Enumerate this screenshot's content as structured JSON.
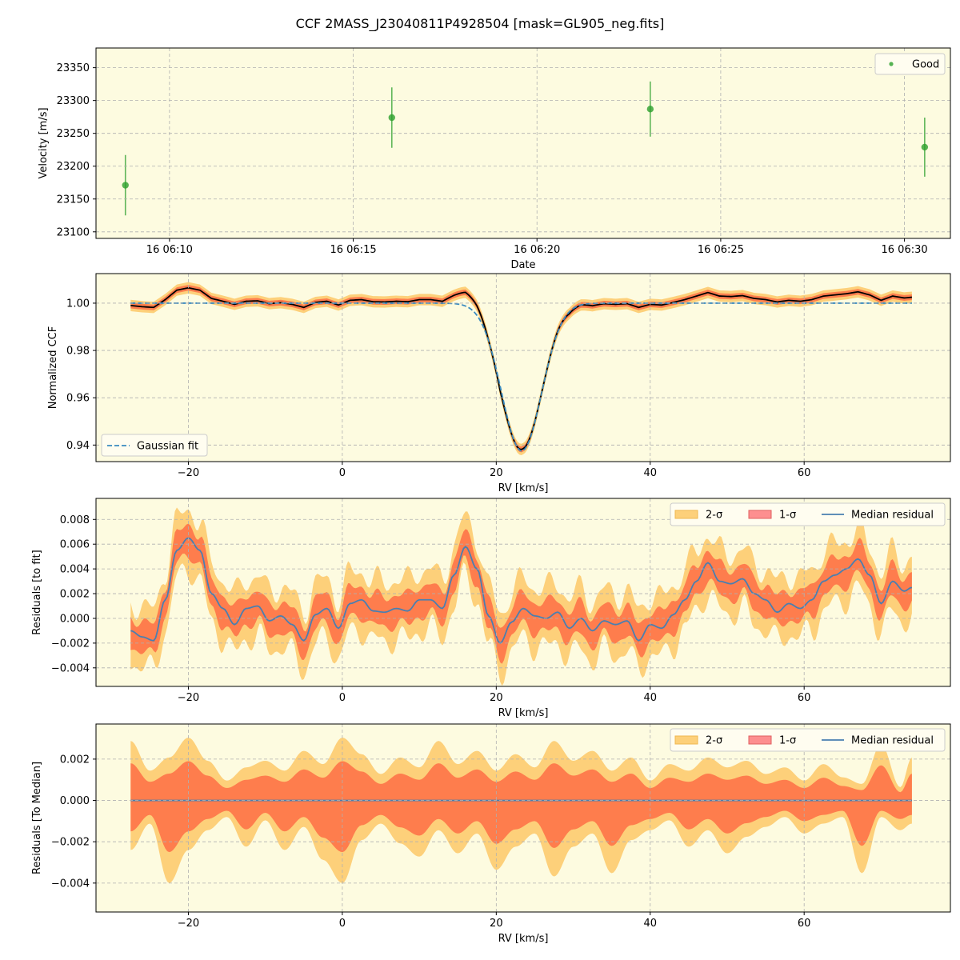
{
  "figure": {
    "title": "CCF 2MASS_J23040811P4928504 [mask=GL905_neg.fits]"
  },
  "colors": {
    "panel_bg": "#fdfbe0",
    "grid": "#b0b0b0",
    "good_points": "#2ca02c",
    "band_2sigma": "#fdd07a",
    "band_1sigma": "#fe7d4d",
    "median_line": "#4a7fb0",
    "gauss_fit": "#3a8bc0",
    "ccf_line": "#000000"
  },
  "chart_data": [
    {
      "type": "scatter",
      "xlabel": "Date",
      "ylabel": "Velocity [m/s]",
      "xlim": [
        "06:08:00",
        "06:31:15"
      ],
      "ylim": [
        23090,
        23380
      ],
      "x_ticks": [
        "06:10",
        "06:15",
        "06:20",
        "06:25",
        "06:30"
      ],
      "x_tick_labels": [
        "16 06:10",
        "16 06:15",
        "16 06:20",
        "16 06:25",
        "16 06:30"
      ],
      "y_ticks": [
        23100,
        23150,
        23200,
        23250,
        23300,
        23350
      ],
      "legend": {
        "entries": [
          "Good"
        ],
        "position": "top-right"
      },
      "series": [
        {
          "name": "Good",
          "x": [
            "06:08:48",
            "06:16:03",
            "06:23:05",
            "06:30:33"
          ],
          "y": [
            23171,
            23274,
            23287,
            23229
          ],
          "yerr": [
            46,
            46,
            42,
            45
          ]
        }
      ]
    },
    {
      "type": "line",
      "xlabel": "RV [km/s]",
      "ylabel": "Normalized CCF",
      "xlim": [
        -32,
        79
      ],
      "ylim": [
        0.933,
        1.0125
      ],
      "x_ticks": [
        -20,
        0,
        20,
        40,
        60
      ],
      "y_ticks": [
        0.94,
        0.96,
        0.98,
        1.0
      ],
      "y_tick_labels": [
        "0.94",
        "0.96",
        "0.98",
        "1.00"
      ],
      "legend": {
        "entries": [
          "Gaussian fit"
        ],
        "position": "bottom-left"
      },
      "rv_range": [
        -27.5,
        74
      ],
      "gaussian_fit": {
        "baseline": 1.0,
        "depth": 0.0625,
        "center": 23.3,
        "sigma": 2.6
      }
    },
    {
      "type": "area",
      "xlabel": "RV [km/s]",
      "ylabel": "Residuals [to fit]",
      "xlim": [
        -32,
        79
      ],
      "ylim": [
        -0.0055,
        0.0097
      ],
      "x_ticks": [
        -20,
        0,
        20,
        40,
        60
      ],
      "y_ticks": [
        -0.004,
        -0.002,
        0.0,
        0.002,
        0.004,
        0.006,
        0.008
      ],
      "y_tick_labels": [
        "−0.004",
        "−0.002",
        "0.000",
        "0.002",
        "0.004",
        "0.006",
        "0.008"
      ],
      "legend": {
        "entries": [
          "2-σ",
          "1-σ",
          "Median residual"
        ],
        "position": "top-right"
      },
      "median_residual": {
        "x": [
          -27.5,
          -26,
          -24.5,
          -23,
          -21.5,
          -20,
          -18.5,
          -17,
          -15.5,
          -14,
          -12.5,
          -11,
          -9.5,
          -8,
          -6.5,
          -5,
          -3.5,
          -2,
          -0.5,
          1,
          2.5,
          4,
          5.5,
          7,
          8.5,
          10,
          11.5,
          13,
          14.5,
          16,
          17.5,
          19,
          20.5,
          22,
          23.5,
          25,
          26.5,
          28,
          29.5,
          31,
          32.5,
          34,
          35.5,
          37,
          38.5,
          40,
          41.5,
          43,
          44.5,
          46,
          47.5,
          49,
          50.5,
          52,
          53.5,
          55,
          56.5,
          58,
          59.5,
          61,
          62.5,
          64,
          65.5,
          67,
          68.5,
          70,
          71.5,
          73,
          74
        ],
        "y": [
          -0.001,
          -0.0015,
          -0.0018,
          0.0015,
          0.0055,
          0.0065,
          0.0055,
          0.002,
          0.0008,
          -0.0005,
          0.0008,
          0.001,
          -0.0002,
          0.0002,
          -0.0005,
          -0.0018,
          0.0003,
          0.0008,
          -0.0008,
          0.0012,
          0.0015,
          0.0006,
          0.0005,
          0.0008,
          0.0006,
          0.0015,
          0.0015,
          0.0008,
          0.0035,
          0.0058,
          0.004,
          0.0002,
          -0.002,
          -0.0003,
          0.0008,
          0.0002,
          0.0,
          0.0005,
          -0.0008,
          0.0,
          -0.001,
          -0.0002,
          -0.0005,
          -0.0002,
          -0.0018,
          -0.0005,
          -0.0008,
          0.0003,
          0.0015,
          0.003,
          0.0045,
          0.003,
          0.0028,
          0.0032,
          0.002,
          0.0015,
          0.0005,
          0.0012,
          0.0008,
          0.0015,
          0.003,
          0.0035,
          0.004,
          0.0048,
          0.0035,
          0.0012,
          0.003,
          0.0022,
          0.0025
        ]
      },
      "band_1sigma_halfwidth": 0.0012,
      "band_2sigma_halfwidth": 0.0024
    },
    {
      "type": "area",
      "xlabel": "RV [km/s]",
      "ylabel": "Residuals [To Median]",
      "xlim": [
        -32,
        79
      ],
      "ylim": [
        -0.0054,
        0.0037
      ],
      "x_ticks": [
        -20,
        0,
        20,
        40,
        60
      ],
      "y_ticks": [
        -0.004,
        -0.002,
        0.0,
        0.002
      ],
      "y_tick_labels": [
        "−0.004",
        "−0.002",
        "0.000",
        "0.002"
      ],
      "legend": {
        "entries": [
          "2-σ",
          "1-σ",
          "Median residual"
        ],
        "position": "top-right"
      },
      "median_residual": {
        "x": [
          -27.5,
          74
        ],
        "y": [
          0.0,
          0.0
        ]
      },
      "band_1sigma_envelope": {
        "x": [
          -27.5,
          -25,
          -22.5,
          -20,
          -17.5,
          -15,
          -12.5,
          -10,
          -7.5,
          -5,
          -2.5,
          0,
          2.5,
          5,
          7.5,
          10,
          12.5,
          15,
          17.5,
          20,
          22.5,
          25,
          27.5,
          30,
          32.5,
          35,
          37.5,
          40,
          42.5,
          45,
          47.5,
          50,
          52.5,
          55,
          57.5,
          60,
          62.5,
          65,
          67.5,
          70,
          72.5,
          74
        ],
        "upper": [
          0.0018,
          0.0009,
          0.0013,
          0.0019,
          0.0012,
          0.0006,
          0.001,
          0.0012,
          0.0009,
          0.0015,
          0.0011,
          0.0019,
          0.0014,
          0.0008,
          0.0013,
          0.001,
          0.0018,
          0.0011,
          0.0015,
          0.0009,
          0.0014,
          0.001,
          0.0018,
          0.0012,
          0.0015,
          0.0009,
          0.0013,
          0.0006,
          0.0011,
          0.0009,
          0.0013,
          0.001,
          0.0012,
          0.0008,
          0.001,
          0.0006,
          0.0011,
          0.0007,
          0.0005,
          0.0017,
          0.0004,
          0.0013
        ],
        "lower": [
          -0.0015,
          -0.0007,
          -0.0025,
          -0.0015,
          -0.0009,
          -0.0005,
          -0.0014,
          -0.0006,
          -0.0015,
          -0.0008,
          -0.0018,
          -0.0025,
          -0.0012,
          -0.0007,
          -0.0013,
          -0.0017,
          -0.0009,
          -0.0016,
          -0.001,
          -0.0021,
          -0.0014,
          -0.001,
          -0.0023,
          -0.0014,
          -0.001,
          -0.0022,
          -0.0012,
          -0.0009,
          -0.0006,
          -0.0014,
          -0.0009,
          -0.0016,
          -0.0011,
          -0.0008,
          -0.0005,
          -0.001,
          -0.0007,
          -0.0005,
          -0.0022,
          -0.0005,
          -0.0009,
          -0.0007
        ]
      },
      "band_2sigma_scale": 1.6
    }
  ]
}
